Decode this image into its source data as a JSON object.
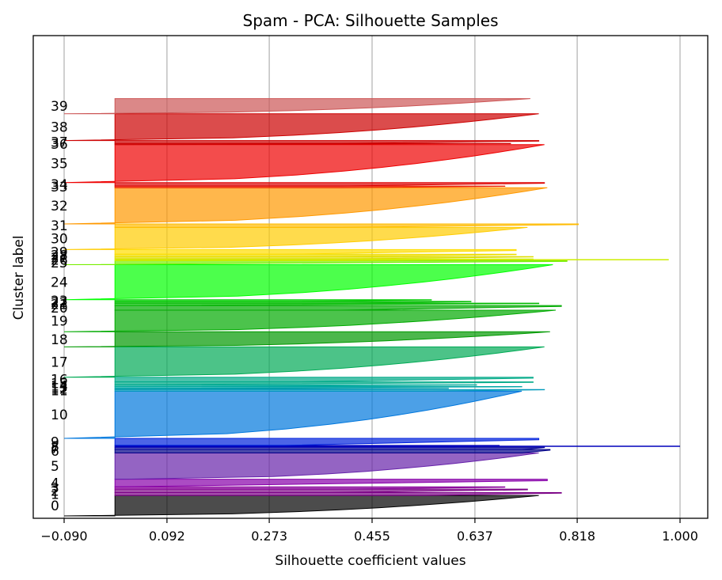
{
  "chart_data": {
    "type": "area",
    "title": "Spam - PCA: Silhouette Samples",
    "xlabel": "Silhouette coefficient values",
    "ylabel": "Cluster label",
    "xlim": [
      -0.09,
      1.0
    ],
    "x_ticks": [
      "−0.090",
      "0.092",
      "0.273",
      "0.455",
      "0.637",
      "0.818",
      "1.000"
    ],
    "x_tick_values": [
      -0.09,
      0.092,
      0.273,
      0.455,
      0.637,
      0.818,
      1.0
    ],
    "grid": "vertical",
    "ylim": [
      0,
      820
    ],
    "clusters": [
      {
        "label": "0",
        "start": 0,
        "size": 35,
        "max": 0.75,
        "min": -0.09,
        "spike": null,
        "color": "#000000"
      },
      {
        "label": "1",
        "start": 35,
        "size": 5,
        "max": 0.79,
        "min": 0.55,
        "spike": null,
        "color": "#7a0085"
      },
      {
        "label": "2",
        "start": 40,
        "size": 6,
        "max": 0.73,
        "min": 0.38,
        "spike": null,
        "color": "#7a0085"
      },
      {
        "label": "3",
        "start": 46,
        "size": 4,
        "max": 0.69,
        "min": 0.4,
        "spike": null,
        "color": "#880099"
      },
      {
        "label": "4",
        "start": 50,
        "size": 13,
        "max": 0.765,
        "min": 0.01,
        "spike": null,
        "color": "#8800aa"
      },
      {
        "label": "5",
        "start": 63,
        "size": 45,
        "max": 0.75,
        "min": 0.02,
        "spike": null,
        "color": "#6622aa"
      },
      {
        "label": "6",
        "start": 108,
        "size": 6,
        "max": 0.77,
        "min": 0.72,
        "spike": null,
        "color": "#000088"
      },
      {
        "label": "7",
        "start": 114,
        "size": 4,
        "max": 0.76,
        "min": 0.72,
        "spike": null,
        "color": "#000099"
      },
      {
        "label": "8",
        "start": 118,
        "size": 3,
        "max": 0.68,
        "min": 0.6,
        "spike": 1.0,
        "color": "#0000bb"
      },
      {
        "label": "9",
        "start": 121,
        "size": 12,
        "max": 0.75,
        "min": 0.3,
        "spike": null,
        "color": "#0022dd"
      },
      {
        "label": "10",
        "start": 133,
        "size": 81,
        "max": 0.72,
        "min": -0.09,
        "spike": null,
        "color": "#0077dd"
      },
      {
        "label": "11",
        "start": 214,
        "size": 3,
        "max": 0.76,
        "min": 0.56,
        "spike": null,
        "color": "#0099bb"
      },
      {
        "label": "12",
        "start": 217,
        "size": 2,
        "max": 0.59,
        "min": 0.0,
        "spike": null,
        "color": "#0099aa"
      },
      {
        "label": "13",
        "start": 219,
        "size": 3,
        "max": 0.72,
        "min": 0.0,
        "spike": null,
        "color": "#00a5a5"
      },
      {
        "label": "14",
        "start": 222,
        "size": 3,
        "max": 0.64,
        "min": 0.0,
        "spike": null,
        "color": "#00aa99"
      },
      {
        "label": "15",
        "start": 225,
        "size": 5,
        "max": 0.74,
        "min": 0.0,
        "spike": null,
        "color": "#00aa88"
      },
      {
        "label": "16",
        "start": 230,
        "size": 8,
        "max": 0.74,
        "min": 0.32,
        "spike": null,
        "color": "#00aa88"
      },
      {
        "label": "17",
        "start": 238,
        "size": 52,
        "max": 0.76,
        "min": -0.09,
        "spike": null,
        "color": "#00aa55"
      },
      {
        "label": "18",
        "start": 290,
        "size": 26,
        "max": 0.77,
        "min": -0.09,
        "spike": null,
        "color": "#009900"
      },
      {
        "label": "19",
        "start": 316,
        "size": 37,
        "max": 0.78,
        "min": -0.09,
        "spike": null,
        "color": "#00aa00"
      },
      {
        "label": "20",
        "start": 353,
        "size": 8,
        "max": 0.79,
        "min": 0.4,
        "spike": null,
        "color": "#00aa00"
      },
      {
        "label": "21",
        "start": 361,
        "size": 4,
        "max": 0.75,
        "min": 0.0,
        "spike": null,
        "color": "#00bb00"
      },
      {
        "label": "22",
        "start": 365,
        "size": 3,
        "max": 0.63,
        "min": 0.4,
        "spike": null,
        "color": "#00bb00"
      },
      {
        "label": "23",
        "start": 368,
        "size": 3,
        "max": 0.56,
        "min": 0.3,
        "spike": null,
        "color": "#00cc00"
      },
      {
        "label": "24",
        "start": 371,
        "size": 60,
        "max": 0.775,
        "min": -0.09,
        "spike": null,
        "color": "#00ff00"
      },
      {
        "label": "25",
        "start": 431,
        "size": 7,
        "max": 0.8,
        "min": -0.09,
        "spike": null,
        "color": "#77ee00"
      },
      {
        "label": "26",
        "start": 438,
        "size": 3,
        "max": 0.74,
        "min": 0.4,
        "spike": 0.98,
        "color": "#ccee00"
      },
      {
        "label": "27",
        "start": 441,
        "size": 4,
        "max": 0.74,
        "min": 0.4,
        "spike": null,
        "color": "#dddd00"
      },
      {
        "label": "28",
        "start": 445,
        "size": 4,
        "max": 0.71,
        "min": 0.35,
        "spike": null,
        "color": "#eedd00"
      },
      {
        "label": "29",
        "start": 449,
        "size": 8,
        "max": 0.71,
        "min": 0.3,
        "spike": null,
        "color": "#ffdd00"
      },
      {
        "label": "30",
        "start": 457,
        "size": 38,
        "max": 0.73,
        "min": -0.09,
        "spike": null,
        "color": "#ffcc00"
      },
      {
        "label": "31",
        "start": 495,
        "size": 6,
        "max": 0.82,
        "min": 0.4,
        "spike": null,
        "color": "#ffbb00"
      },
      {
        "label": "32",
        "start": 501,
        "size": 62,
        "max": 0.765,
        "min": -0.09,
        "spike": null,
        "color": "#ff9900"
      },
      {
        "label": "33",
        "start": 563,
        "size": 3,
        "max": 0.69,
        "min": 0.4,
        "spike": null,
        "color": "#ee2200"
      },
      {
        "label": "34",
        "start": 566,
        "size": 6,
        "max": 0.76,
        "min": 0.4,
        "spike": null,
        "color": "#dd0000"
      },
      {
        "label": "35",
        "start": 572,
        "size": 65,
        "max": 0.76,
        "min": -0.09,
        "spike": null,
        "color": "#ee0000"
      },
      {
        "label": "36",
        "start": 637,
        "size": 2,
        "max": 0.7,
        "min": 0.0,
        "spike": null,
        "color": "#cc0000"
      },
      {
        "label": "37",
        "start": 639,
        "size": 5,
        "max": 0.75,
        "min": 0.4,
        "spike": null,
        "color": "#cc0000"
      },
      {
        "label": "38",
        "start": 644,
        "size": 46,
        "max": 0.75,
        "min": -0.09,
        "spike": null,
        "color": "#cc0000"
      },
      {
        "label": "39",
        "start": 690,
        "size": 26,
        "max": 0.735,
        "min": -0.09,
        "spike": null,
        "color": "#cc5555"
      }
    ]
  }
}
